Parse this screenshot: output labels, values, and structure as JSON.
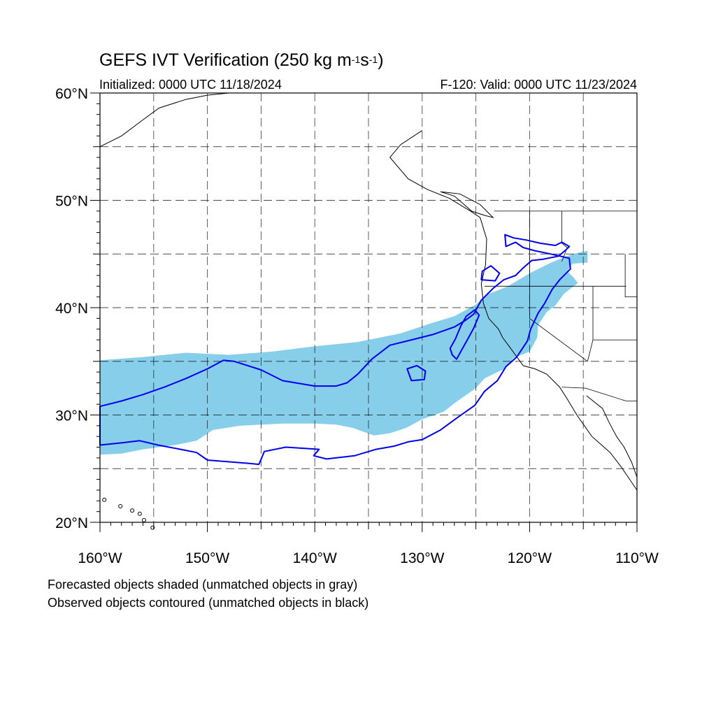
{
  "header": {
    "title_main": "GEFS IVT Verification (250 kg m",
    "title_sup1": "-1",
    "title_mid": "s",
    "title_sup2": "-1",
    "title_end": ")",
    "initialized": "Initialized: 0000 UTC 11/18/2024",
    "valid": "F-120: Valid: 0000 UTC 11/23/2024"
  },
  "map": {
    "lon_range": [
      -160,
      -110
    ],
    "lat_range": [
      20,
      60
    ],
    "grid": true,
    "lat_labels": [
      {
        "lat": 60,
        "text": "60°N"
      },
      {
        "lat": 50,
        "text": "50°N"
      },
      {
        "lat": 40,
        "text": "40°N"
      },
      {
        "lat": 30,
        "text": "30°N"
      },
      {
        "lat": 20,
        "text": "20°N"
      }
    ],
    "lon_labels": [
      {
        "lon": -160,
        "text": "160°W"
      },
      {
        "lon": -150,
        "text": "150°W"
      },
      {
        "lon": -140,
        "text": "140°W"
      },
      {
        "lon": -130,
        "text": "130°W"
      },
      {
        "lon": -120,
        "text": "120°W"
      },
      {
        "lon": -110,
        "text": "110°W"
      }
    ],
    "colors": {
      "forecast_fill": "#87ceeb",
      "observed_contour": "#0000ee",
      "coast": "#000000",
      "grid": "#000000"
    },
    "forecast_object": [
      [
        -160,
        35.1
      ],
      [
        -156,
        35.4
      ],
      [
        -152,
        35.8
      ],
      [
        -148,
        35.6
      ],
      [
        -144,
        35.9
      ],
      [
        -140,
        36.4
      ],
      [
        -136,
        36.8
      ],
      [
        -132,
        37.6
      ],
      [
        -129,
        38.6
      ],
      [
        -127,
        39.2
      ],
      [
        -125,
        40.3
      ],
      [
        -124,
        41.2
      ],
      [
        -122,
        42.0
      ],
      [
        -120,
        43.2
      ],
      [
        -118,
        44.2
      ],
      [
        -116,
        45.0
      ],
      [
        -114.6,
        45.3
      ],
      [
        -114.6,
        44.2
      ],
      [
        -116,
        44.1
      ],
      [
        -116.5,
        43.4
      ],
      [
        -115.9,
        42.8
      ],
      [
        -115.5,
        42.3
      ],
      [
        -116.8,
        41.3
      ],
      [
        -117.6,
        40.2
      ],
      [
        -118.4,
        39.6
      ],
      [
        -119.2,
        38.4
      ],
      [
        -119.3,
        37.2
      ],
      [
        -120,
        35.9
      ],
      [
        -121.5,
        35.3
      ],
      [
        -122.3,
        34.3
      ],
      [
        -123.2,
        33.9
      ],
      [
        -124.2,
        33.4
      ],
      [
        -125,
        32.5
      ],
      [
        -126,
        31.8
      ],
      [
        -127,
        31.1
      ],
      [
        -128,
        30.3
      ],
      [
        -130,
        29.6
      ],
      [
        -131.5,
        28.8
      ],
      [
        -133,
        28.3
      ],
      [
        -134.5,
        28.1
      ],
      [
        -136.5,
        28.8
      ],
      [
        -138,
        29.1
      ],
      [
        -140,
        29.2
      ],
      [
        -143,
        29.2
      ],
      [
        -147,
        29.0
      ],
      [
        -149.5,
        28.6
      ],
      [
        -151,
        27.6
      ],
      [
        -153,
        27.2
      ],
      [
        -156,
        26.8
      ],
      [
        -158,
        26.4
      ],
      [
        -160,
        26.3
      ]
    ],
    "observed_objects": [
      [
        [
          -160,
          30.8
        ],
        [
          -158,
          31.3
        ],
        [
          -156,
          31.9
        ],
        [
          -154,
          32.6
        ],
        [
          -152,
          33.4
        ],
        [
          -150,
          34.3
        ],
        [
          -148.5,
          35.1
        ],
        [
          -147.5,
          35.0
        ],
        [
          -145,
          34.2
        ],
        [
          -143,
          33.2
        ],
        [
          -140,
          32.7
        ],
        [
          -138,
          32.7
        ],
        [
          -137,
          33.0
        ],
        [
          -136,
          33.8
        ],
        [
          -134.7,
          35.2
        ],
        [
          -133,
          36.5
        ],
        [
          -131,
          37.0
        ],
        [
          -129,
          37.5
        ],
        [
          -127,
          38.2
        ],
        [
          -126,
          38.8
        ],
        [
          -125.2,
          39.4
        ],
        [
          -124.5,
          40.7
        ],
        [
          -123.4,
          41.8
        ],
        [
          -122.4,
          42.6
        ],
        [
          -121.3,
          43.0
        ],
        [
          -120.6,
          43.7
        ],
        [
          -119.8,
          44.4
        ],
        [
          -118.8,
          44.5
        ],
        [
          -117.3,
          44.8
        ],
        [
          -116.6,
          45.4
        ],
        [
          -116.3,
          45.7
        ],
        [
          -117,
          46.1
        ],
        [
          -117.6,
          45.8
        ],
        [
          -119,
          46.0
        ],
        [
          -120.3,
          46.3
        ],
        [
          -121.5,
          46.5
        ],
        [
          -122.3,
          46.8
        ],
        [
          -122.2,
          45.7
        ],
        [
          -121.3,
          46.1
        ],
        [
          -120.6,
          45.6
        ],
        [
          -119.5,
          45.3
        ],
        [
          -118.5,
          45.1
        ],
        [
          -117.6,
          44.9
        ],
        [
          -116.3,
          44.6
        ],
        [
          -116.2,
          43.6
        ],
        [
          -117.2,
          42.6
        ],
        [
          -117.9,
          41.7
        ],
        [
          -118.6,
          40.4
        ],
        [
          -119.2,
          39.5
        ],
        [
          -119.9,
          38.0
        ],
        [
          -120.2,
          36.9
        ],
        [
          -121.2,
          35.4
        ],
        [
          -122.2,
          34.5
        ],
        [
          -123.0,
          33.2
        ],
        [
          -124.2,
          32.2
        ],
        [
          -125.1,
          30.9
        ],
        [
          -126.8,
          29.7
        ],
        [
          -128.3,
          28.6
        ],
        [
          -130.0,
          27.7
        ],
        [
          -131.3,
          27.5
        ],
        [
          -132.6,
          27.1
        ],
        [
          -134.3,
          26.8
        ],
        [
          -136.3,
          26.2
        ],
        [
          -138.9,
          25.9
        ],
        [
          -140.1,
          26.2
        ],
        [
          -139.6,
          26.8
        ],
        [
          -142.7,
          27.0
        ],
        [
          -144.7,
          26.6
        ],
        [
          -145.2,
          25.4
        ],
        [
          -146.2,
          25.5
        ],
        [
          -150.0,
          25.8
        ],
        [
          -151.0,
          26.5
        ],
        [
          -152.5,
          26.8
        ],
        [
          -154.6,
          27.2
        ],
        [
          -156.3,
          27.6
        ],
        [
          -158.0,
          27.4
        ],
        [
          -160,
          27.2
        ]
      ],
      [
        [
          -127.2,
          35.6
        ],
        [
          -126.8,
          35.2
        ],
        [
          -126.3,
          36.1
        ],
        [
          -125.8,
          37.0
        ],
        [
          -125.2,
          38.1
        ],
        [
          -124.7,
          39.3
        ],
        [
          -125.1,
          39.8
        ],
        [
          -125.9,
          39.2
        ],
        [
          -126.4,
          38.3
        ],
        [
          -126.9,
          37.1
        ],
        [
          -127.4,
          36.2
        ]
      ],
      [
        [
          -131.0,
          33.2
        ],
        [
          -129.8,
          33.3
        ],
        [
          -129.7,
          34.1
        ],
        [
          -130.5,
          34.6
        ],
        [
          -131.4,
          34.3
        ]
      ],
      [
        [
          -124.5,
          42.6
        ],
        [
          -123.2,
          42.5
        ],
        [
          -122.8,
          43.2
        ],
        [
          -123.6,
          43.9
        ],
        [
          -124.4,
          43.4
        ]
      ]
    ]
  },
  "notes": {
    "forecast": "Forecasted objects shaded (unmatched objects in gray)",
    "observed": "Observed objects contoured (unmatched objects in black)"
  }
}
